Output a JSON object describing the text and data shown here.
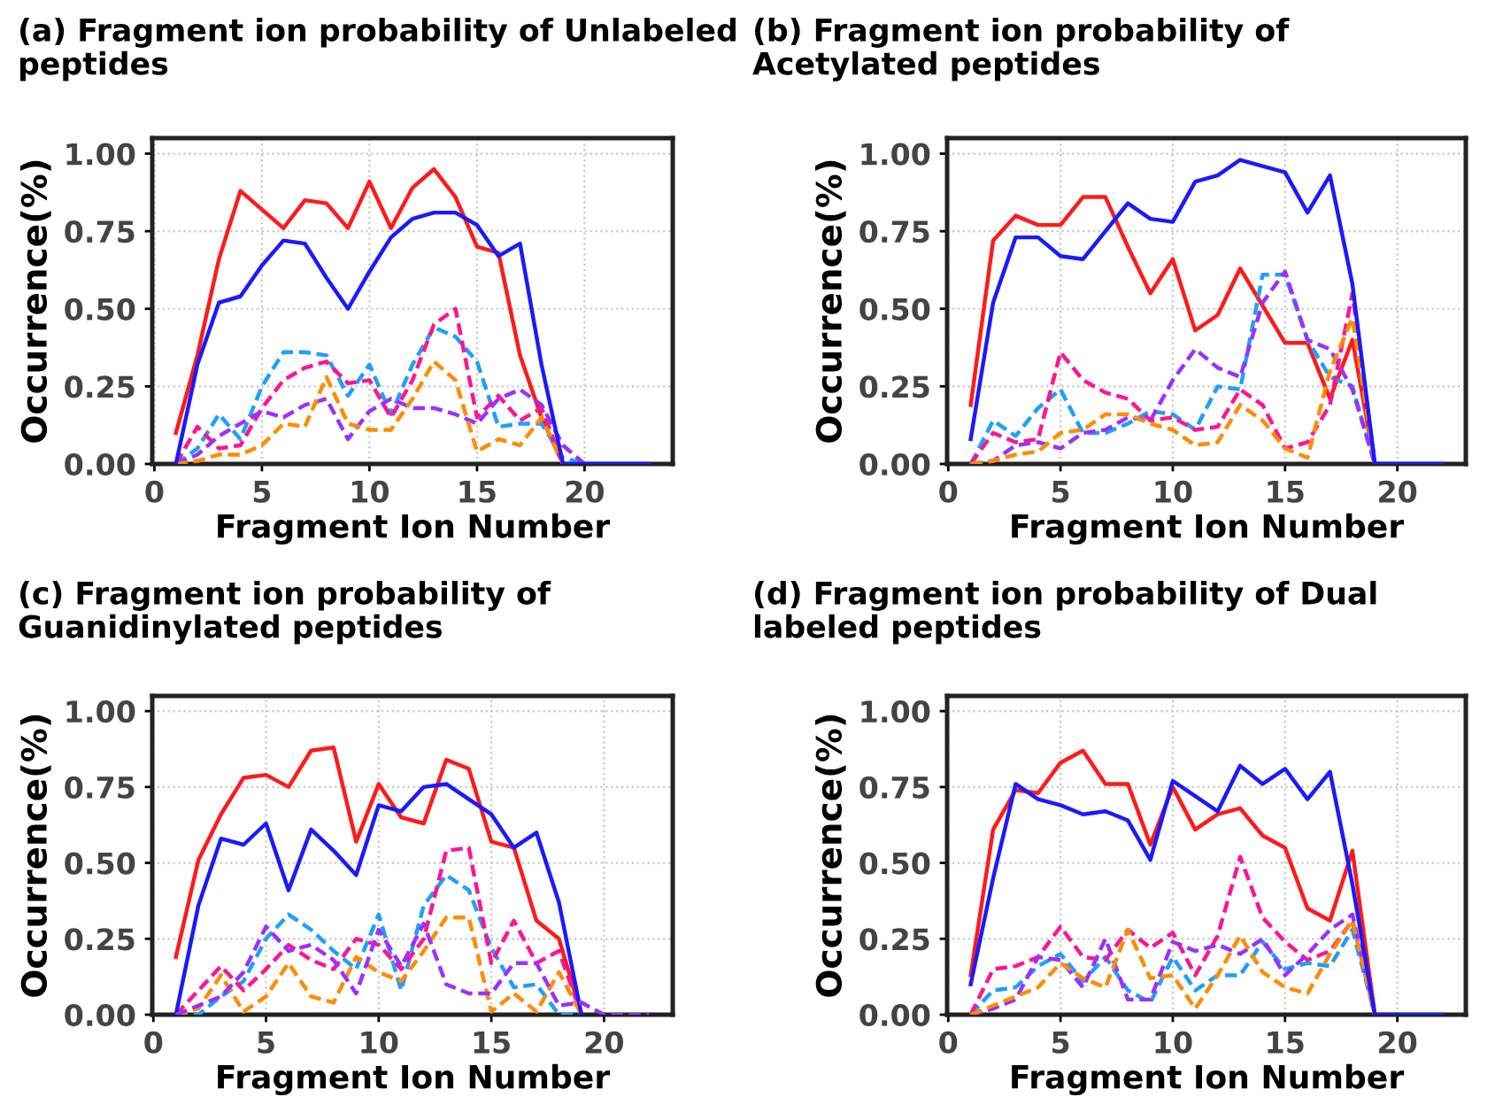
{
  "chart_data": [
    {
      "type": "line",
      "title": "(a) Fragment ion probability of Unlabeled peptides",
      "xlabel": "Fragment Ion Number",
      "ylabel": "Occurrence(%)",
      "x": [
        1,
        2,
        3,
        4,
        5,
        6,
        7,
        8,
        9,
        10,
        11,
        12,
        13,
        14,
        15,
        16,
        17,
        18,
        19,
        20,
        21,
        22,
        23
      ],
      "xlim": [
        -0.1,
        24.1
      ],
      "xticks": [
        0,
        5,
        10,
        15,
        20
      ],
      "ylim": [
        0,
        1.05
      ],
      "yticks": [
        {
          "value": 0,
          "label": "0.00"
        },
        {
          "value": 0.25,
          "label": "0.25"
        },
        {
          "value": 0.5,
          "label": "0.50"
        },
        {
          "value": 0.75,
          "label": "0.75"
        },
        {
          "value": 1,
          "label": "1.00"
        }
      ],
      "grid": true,
      "marker": "none",
      "series": [
        {
          "color": "#ff1a1a",
          "line_style": "solid",
          "values": [
            0.1,
            0.35,
            0.66,
            0.88,
            0.82,
            0.76,
            0.85,
            0.84,
            0.76,
            0.91,
            0.76,
            0.89,
            0.95,
            0.86,
            0.7,
            0.68,
            0.35,
            0.15,
            0,
            null,
            null,
            null,
            null
          ]
        },
        {
          "color": "#1e9fff",
          "line_style": "dashed",
          "values": [
            0,
            0.05,
            0.16,
            0.08,
            0.25,
            0.36,
            0.36,
            0.35,
            0.22,
            0.32,
            0.16,
            0.32,
            0.44,
            0.41,
            0.33,
            0.12,
            0.13,
            0.13,
            0.02,
            0,
            null,
            null,
            null
          ]
        },
        {
          "color": "#ff1493",
          "line_style": "dashed",
          "values": [
            0,
            0.12,
            0.05,
            0.06,
            0.18,
            0.27,
            0.31,
            0.33,
            0.26,
            0.27,
            0.15,
            0.27,
            0.45,
            0.5,
            0.15,
            0.22,
            0.14,
            0.18,
            0,
            null,
            null,
            null,
            null
          ]
        },
        {
          "color": "#9b30ff",
          "line_style": "dashed",
          "values": [
            0,
            0.03,
            0.09,
            0.13,
            0.17,
            0.15,
            0.19,
            0.21,
            0.08,
            0.17,
            0.21,
            0.18,
            0.18,
            0.16,
            0.13,
            0.21,
            0.24,
            0.19,
            0.06,
            0,
            null,
            null,
            null
          ]
        },
        {
          "color": "#ff8c00",
          "line_style": "dashed",
          "values": [
            0,
            0.01,
            0.03,
            0.03,
            0.06,
            0.13,
            0.12,
            0.28,
            0.13,
            0.11,
            0.11,
            0.21,
            0.33,
            0.27,
            0.04,
            0.08,
            0.06,
            0.15,
            0,
            null,
            null,
            null,
            null
          ]
        },
        {
          "color": "#1a1aff",
          "line_style": "solid",
          "values": [
            0,
            0.32,
            0.52,
            0.54,
            0.64,
            0.72,
            0.71,
            0.6,
            0.5,
            0.62,
            0.73,
            0.79,
            0.81,
            0.81,
            0.77,
            0.67,
            0.71,
            0.32,
            0,
            0,
            0,
            0,
            0
          ]
        }
      ]
    },
    {
      "type": "line",
      "title": "(b) Fragment ion probability of Acetylated peptides",
      "xlabel": "Fragment Ion Number",
      "ylabel": "Occurrence(%)",
      "x": [
        1,
        2,
        3,
        4,
        5,
        6,
        7,
        8,
        9,
        10,
        11,
        12,
        13,
        14,
        15,
        16,
        17,
        18,
        19,
        20,
        21,
        22
      ],
      "xlim": [
        -0.05,
        23.05
      ],
      "xticks": [
        0,
        5,
        10,
        15,
        20
      ],
      "ylim": [
        0,
        1.05
      ],
      "yticks": [
        {
          "value": 0,
          "label": "0.00"
        },
        {
          "value": 0.25,
          "label": "0.25"
        },
        {
          "value": 0.5,
          "label": "0.50"
        },
        {
          "value": 0.75,
          "label": "0.75"
        },
        {
          "value": 1,
          "label": "1.00"
        }
      ],
      "grid": true,
      "marker": "none",
      "series": [
        {
          "color": "#ff1a1a",
          "line_style": "solid",
          "values": [
            0.19,
            0.72,
            0.8,
            0.77,
            0.77,
            0.86,
            0.86,
            0.7,
            0.55,
            0.66,
            0.43,
            0.48,
            0.63,
            0.51,
            0.39,
            0.39,
            0.21,
            0.4,
            0,
            null,
            null,
            null
          ]
        },
        {
          "color": "#1e9fff",
          "line_style": "dashed",
          "values": [
            0,
            0.14,
            0.09,
            0.18,
            0.24,
            0.1,
            0.1,
            0.13,
            0.17,
            0.16,
            0.11,
            0.25,
            0.24,
            0.61,
            0.61,
            0.4,
            0.28,
            0.25,
            0,
            null,
            null,
            null
          ]
        },
        {
          "color": "#ff1493",
          "line_style": "dashed",
          "values": [
            0,
            0.1,
            0.07,
            0.08,
            0.36,
            0.27,
            0.23,
            0.21,
            0.14,
            0.15,
            0.11,
            0.12,
            0.24,
            0.19,
            0.05,
            0.07,
            0.19,
            0.55,
            0,
            null,
            null,
            null
          ]
        },
        {
          "color": "#9b30ff",
          "line_style": "dashed",
          "values": [
            0,
            0.01,
            0.06,
            0.07,
            0.05,
            0.1,
            0.11,
            0.15,
            0.14,
            0.27,
            0.37,
            0.31,
            0.28,
            0.52,
            0.62,
            0.4,
            0.37,
            0.24,
            0,
            null,
            null,
            null
          ]
        },
        {
          "color": "#ff8c00",
          "line_style": "dashed",
          "values": [
            0,
            0.01,
            0.03,
            0.04,
            0.1,
            0.11,
            0.16,
            0.16,
            0.13,
            0.11,
            0.06,
            0.07,
            0.19,
            0.14,
            0.05,
            0.02,
            0.3,
            0.47,
            0,
            null,
            null,
            null
          ]
        },
        {
          "color": "#1a1aff",
          "line_style": "solid",
          "values": [
            0.08,
            0.52,
            0.73,
            0.73,
            0.67,
            0.66,
            0.75,
            0.84,
            0.79,
            0.78,
            0.91,
            0.93,
            0.98,
            0.96,
            0.94,
            0.81,
            0.93,
            0.58,
            0,
            0,
            0,
            0
          ]
        }
      ]
    },
    {
      "type": "line",
      "title": "(c) Fragment ion probability of Guanidinylated peptides",
      "xlabel": "Fragment Ion Number",
      "ylabel": "Occurrence(%)",
      "x": [
        1,
        2,
        3,
        4,
        5,
        6,
        7,
        8,
        9,
        10,
        11,
        12,
        13,
        14,
        15,
        16,
        17,
        18,
        19,
        20,
        21,
        22
      ],
      "xlim": [
        -0.05,
        23.05
      ],
      "xticks": [
        0,
        5,
        10,
        15,
        20
      ],
      "ylim": [
        0,
        1.05
      ],
      "yticks": [
        {
          "value": 0,
          "label": "0.00"
        },
        {
          "value": 0.25,
          "label": "0.25"
        },
        {
          "value": 0.5,
          "label": "0.50"
        },
        {
          "value": 0.75,
          "label": "0.75"
        },
        {
          "value": 1,
          "label": "1.00"
        }
      ],
      "grid": true,
      "marker": "none",
      "series": [
        {
          "color": "#ff1a1a",
          "line_style": "solid",
          "values": [
            0.19,
            0.51,
            0.66,
            0.78,
            0.79,
            0.75,
            0.87,
            0.88,
            0.57,
            0.76,
            0.65,
            0.63,
            0.84,
            0.81,
            0.57,
            0.55,
            0.31,
            0.25,
            0,
            null,
            null,
            null
          ]
        },
        {
          "color": "#1e9fff",
          "line_style": "dashed",
          "values": [
            0,
            0,
            0.06,
            0.11,
            0.25,
            0.33,
            0.28,
            0.21,
            0.15,
            0.33,
            0.08,
            0.36,
            0.46,
            0.41,
            0.22,
            0.09,
            0.1,
            0,
            0,
            null,
            null,
            null
          ]
        },
        {
          "color": "#ff1493",
          "line_style": "dashed",
          "values": [
            0,
            0.08,
            0.16,
            0.08,
            0.15,
            0.23,
            0.18,
            0.15,
            0.25,
            0.23,
            0.15,
            0.25,
            0.54,
            0.55,
            0.17,
            0.31,
            0.17,
            0.21,
            0,
            null,
            null,
            null
          ]
        },
        {
          "color": "#ff8c00",
          "line_style": "dashed",
          "values": [
            0,
            0.02,
            0.13,
            0.01,
            0.06,
            0.17,
            0.06,
            0.04,
            0.19,
            0.14,
            0.11,
            0.21,
            0.32,
            0.32,
            0.01,
            0.07,
            0.01,
            0.14,
            0,
            null,
            null,
            null
          ]
        },
        {
          "color": "#1a1aff",
          "line_style": "solid",
          "values": [
            0,
            0.36,
            0.58,
            0.56,
            0.63,
            0.41,
            0.61,
            0.54,
            0.46,
            0.69,
            0.67,
            0.75,
            0.76,
            0.71,
            0.66,
            0.55,
            0.6,
            0.37,
            0,
            null,
            null,
            null
          ]
        },
        {
          "color": "#9b30ff",
          "line_style": "dashed",
          "values": [
            0,
            0.03,
            0.06,
            0.14,
            0.29,
            0.21,
            0.23,
            0.18,
            0.07,
            0.28,
            0.16,
            0.3,
            0.1,
            0.07,
            0.07,
            0.17,
            0.17,
            0.03,
            0.04,
            0,
            0,
            0
          ]
        }
      ]
    },
    {
      "type": "line",
      "title": "(d) Fragment ion probability of Dual labeled peptides",
      "xlabel": "Fragment Ion Number",
      "ylabel": "Occurrence(%)",
      "x": [
        1,
        2,
        3,
        4,
        5,
        6,
        7,
        8,
        9,
        10,
        11,
        12,
        13,
        14,
        15,
        16,
        17,
        18,
        19,
        20,
        21,
        22
      ],
      "xlim": [
        -0.05,
        23.05
      ],
      "xticks": [
        0,
        5,
        10,
        15,
        20
      ],
      "ylim": [
        0,
        1.05
      ],
      "yticks": [
        {
          "value": 0,
          "label": "0.00"
        },
        {
          "value": 0.25,
          "label": "0.25"
        },
        {
          "value": 0.5,
          "label": "0.50"
        },
        {
          "value": 0.75,
          "label": "0.75"
        },
        {
          "value": 1,
          "label": "1.00"
        }
      ],
      "grid": true,
      "marker": "none",
      "series": [
        {
          "color": "#ff1a1a",
          "line_style": "solid",
          "values": [
            0.13,
            0.61,
            0.74,
            0.73,
            0.83,
            0.87,
            0.76,
            0.76,
            0.56,
            0.75,
            0.61,
            0.66,
            0.68,
            0.59,
            0.55,
            0.35,
            0.31,
            0.54,
            0,
            null,
            null,
            null
          ]
        },
        {
          "color": "#1e9fff",
          "line_style": "dashed",
          "values": [
            0,
            0.08,
            0.09,
            0.16,
            0.2,
            0.11,
            0.19,
            0.08,
            0.04,
            0.19,
            0.08,
            0.13,
            0.13,
            0.24,
            0.15,
            0.17,
            0.16,
            0.28,
            0,
            null,
            null,
            null
          ]
        },
        {
          "color": "#ff1493",
          "line_style": "dashed",
          "values": [
            0,
            0.15,
            0.16,
            0.19,
            0.29,
            0.19,
            0.18,
            0.28,
            0.22,
            0.27,
            0.13,
            0.26,
            0.52,
            0.32,
            0.24,
            0.18,
            0.21,
            0.31,
            0,
            null,
            null,
            null
          ]
        },
        {
          "color": "#9b30ff",
          "line_style": "dashed",
          "values": [
            0,
            0.02,
            0.05,
            0.19,
            0.18,
            0.09,
            0.25,
            0.05,
            0.05,
            0.24,
            0.21,
            0.23,
            0.2,
            0.25,
            0.13,
            0.2,
            0.28,
            0.33,
            0,
            null,
            null,
            null
          ]
        },
        {
          "color": "#ff8c00",
          "line_style": "dashed",
          "values": [
            0,
            0.03,
            0.06,
            0.09,
            0.17,
            0.12,
            0.09,
            0.28,
            0.12,
            0.13,
            0.02,
            0.13,
            0.26,
            0.14,
            0.09,
            0.07,
            0.2,
            0.31,
            0,
            null,
            null,
            null
          ]
        },
        {
          "color": "#1a1aff",
          "line_style": "solid",
          "values": [
            0.1,
            0.45,
            0.76,
            0.71,
            0.69,
            0.66,
            0.67,
            0.64,
            0.51,
            0.77,
            0.72,
            0.67,
            0.82,
            0.76,
            0.81,
            0.71,
            0.8,
            0.43,
            0,
            0,
            0,
            0
          ]
        }
      ]
    }
  ]
}
